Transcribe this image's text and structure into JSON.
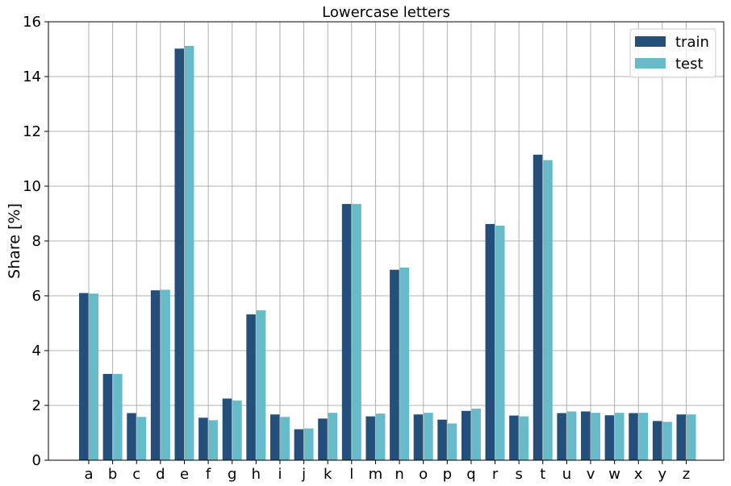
{
  "chart_data": {
    "type": "bar",
    "title": "Lowercase letters",
    "xlabel": "",
    "ylabel": "Share [%]",
    "ylim": [
      0,
      16
    ],
    "yticks": [
      "0",
      "2",
      "4",
      "6",
      "8",
      "10",
      "12",
      "14",
      "16"
    ],
    "grid": true,
    "legend_position": "top-right",
    "categories": [
      "a",
      "b",
      "c",
      "d",
      "e",
      "f",
      "g",
      "h",
      "i",
      "j",
      "k",
      "l",
      "m",
      "n",
      "o",
      "p",
      "q",
      "r",
      "s",
      "t",
      "u",
      "v",
      "w",
      "x",
      "y",
      "z"
    ],
    "series": [
      {
        "name": "train",
        "color": "#234f7a",
        "values": [
          6.1,
          3.15,
          1.72,
          6.2,
          15.02,
          1.55,
          2.25,
          5.32,
          1.67,
          1.13,
          1.52,
          9.35,
          1.6,
          6.95,
          1.67,
          1.48,
          1.8,
          8.62,
          1.63,
          11.15,
          1.72,
          1.78,
          1.64,
          1.72,
          1.43,
          1.67
        ]
      },
      {
        "name": "test",
        "color": "#67bbc8",
        "values": [
          6.08,
          3.15,
          1.58,
          6.22,
          15.12,
          1.46,
          2.18,
          5.47,
          1.58,
          1.16,
          1.73,
          9.35,
          1.7,
          7.03,
          1.73,
          1.34,
          1.88,
          8.56,
          1.6,
          10.95,
          1.78,
          1.73,
          1.73,
          1.73,
          1.4,
          1.67
        ]
      }
    ]
  }
}
